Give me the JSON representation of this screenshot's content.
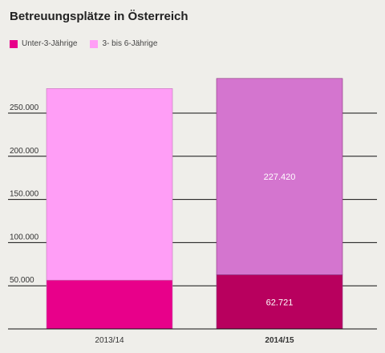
{
  "chart_data": {
    "type": "bar",
    "stacked": true,
    "title": "Betreuungsplätze in Österreich",
    "categories": [
      "2013/14",
      "2014/15"
    ],
    "highlighted_category": "2014/15",
    "series": [
      {
        "name": "Unter-3-Jährige",
        "values": [
          56500,
          62721
        ],
        "color": "#e8008a",
        "highlight_color": "#b8005e"
      },
      {
        "name": "3- bis 6-Jährige",
        "values": [
          222000,
          227420
        ],
        "color": "#ff9ef6",
        "highlight_color": "#d475cf"
      }
    ],
    "data_labels": {
      "2014/15": [
        "62.721",
        "227.420"
      ]
    },
    "ylim": [
      0,
      300000
    ],
    "yticks": [
      50000,
      100000,
      150000,
      200000,
      250000
    ],
    "ytick_labels": [
      "50.000",
      "100.000",
      "150.000",
      "200.000",
      "250.000"
    ],
    "xlabel": "",
    "ylabel": "",
    "grid": true,
    "legend_position": "top-left"
  }
}
